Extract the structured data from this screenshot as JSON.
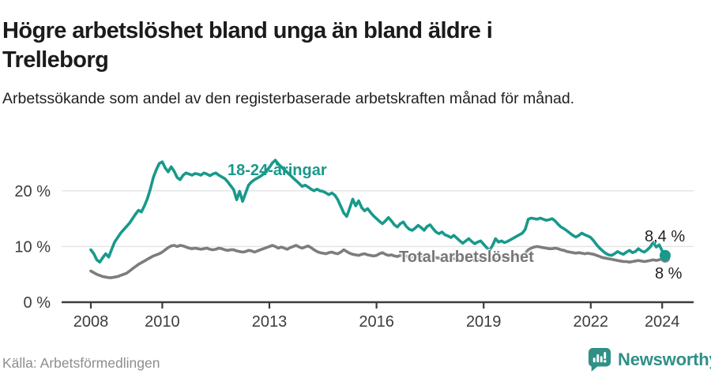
{
  "header": {
    "title": "Högre arbetslöshet bland unga än bland äldre i Trelleborg",
    "subtitle": "Arbetssökande som andel av den registerbaserade arbetskraften månad för månad."
  },
  "footer": {
    "source": "Källa: Arbetsförmedlingen",
    "brand": "Newsworthy"
  },
  "colors": {
    "teal": "#18998b",
    "gray_line": "#7d7d7d",
    "axis": "#3c3c3c",
    "axis_text": "#3c3c3c",
    "gridline": "#e3e3e3",
    "end_label": "#1f1f1f",
    "logo_teal": "#2f9087"
  },
  "chart_data": {
    "type": "line",
    "title": "Högre arbetslöshet bland unga än bland äldre i Trelleborg",
    "subtitle": "Arbetssökande som andel av den registerbaserade arbetskraften månad för månad.",
    "x_unit": "month",
    "x_start": "2008-01",
    "x_end": "2024-02",
    "ylim": [
      0,
      27
    ],
    "grid": true,
    "grid_values": [
      10,
      20
    ],
    "legend_position": "inline-labels",
    "y_ticks": [
      {
        "value": 0,
        "label": "0 %"
      },
      {
        "value": 10,
        "label": "10 %"
      },
      {
        "value": 20,
        "label": "20 %"
      }
    ],
    "x_ticks": [
      {
        "year": 2008,
        "label": "2008"
      },
      {
        "year": 2010,
        "label": "2010"
      },
      {
        "year": 2013,
        "label": "2013"
      },
      {
        "year": 2016,
        "label": "2016"
      },
      {
        "year": 2019,
        "label": "2019"
      },
      {
        "year": 2022,
        "label": "2022"
      },
      {
        "year": 2024,
        "label": "2024"
      }
    ],
    "series": [
      {
        "name": "18-24-åringar",
        "color": "#18998b",
        "end_label": "8,4 %",
        "end_value": 8.4,
        "values": [
          9.4,
          8.7,
          7.6,
          7.2,
          8.0,
          8.7,
          8.1,
          9.5,
          10.8,
          11.6,
          12.4,
          13.0,
          13.6,
          14.2,
          15.0,
          15.8,
          16.5,
          16.2,
          17.3,
          18.6,
          20.3,
          22.4,
          23.8,
          24.9,
          25.2,
          24.1,
          23.4,
          24.3,
          23.5,
          22.4,
          22.0,
          22.8,
          23.2,
          23.0,
          22.8,
          23.1,
          23.0,
          22.8,
          23.2,
          23.0,
          22.7,
          23.0,
          23.2,
          22.8,
          22.5,
          22.2,
          21.6,
          20.9,
          20.2,
          18.4,
          19.9,
          18.1,
          19.6,
          21.0,
          21.6,
          22.0,
          22.3,
          22.6,
          23.0,
          23.6,
          24.2,
          25.0,
          25.5,
          24.8,
          24.3,
          23.8,
          23.3,
          22.8,
          22.3,
          21.8,
          21.3,
          20.8,
          21.0,
          20.7,
          20.3,
          20.0,
          20.3,
          20.0,
          19.9,
          19.6,
          19.3,
          19.6,
          19.2,
          18.4,
          17.2,
          16.0,
          15.4,
          16.9,
          18.5,
          17.3,
          18.2,
          17.0,
          16.4,
          16.8,
          16.1,
          15.5,
          15.0,
          14.5,
          14.1,
          14.6,
          15.2,
          14.6,
          13.9,
          13.5,
          14.1,
          14.4,
          13.6,
          13.1,
          12.9,
          13.3,
          13.8,
          13.4,
          12.9,
          13.6,
          13.9,
          13.2,
          12.6,
          12.3,
          12.6,
          12.1,
          11.9,
          11.6,
          12.0,
          11.5,
          11.0,
          10.6,
          11.0,
          11.4,
          10.9,
          10.5,
          10.8,
          11.0,
          10.4,
          9.8,
          9.3,
          10.2,
          11.4,
          10.8,
          11.0,
          10.7,
          10.9,
          11.2,
          11.5,
          11.8,
          12.1,
          12.4,
          13.1,
          14.9,
          15.1,
          15.0,
          14.9,
          15.1,
          14.9,
          14.7,
          14.8,
          15.0,
          14.6,
          14.0,
          13.5,
          13.2,
          12.8,
          12.4,
          12.0,
          11.7,
          12.0,
          12.4,
          12.1,
          11.9,
          11.6,
          11.0,
          10.3,
          9.7,
          9.2,
          8.8,
          8.5,
          8.4,
          8.7,
          9.1,
          8.8,
          8.6,
          9.0,
          9.3,
          8.9,
          9.1,
          9.6,
          9.2,
          9.0,
          9.4,
          9.9,
          10.8,
          9.9,
          10.3,
          9.2,
          8.4
        ]
      },
      {
        "name": "Total arbetslöshet",
        "color": "#7d7d7d",
        "end_label": "8 %",
        "end_value": 8.0,
        "values": [
          5.6,
          5.3,
          5.0,
          4.8,
          4.6,
          4.5,
          4.4,
          4.4,
          4.5,
          4.6,
          4.8,
          5.0,
          5.2,
          5.6,
          6.0,
          6.4,
          6.8,
          7.1,
          7.4,
          7.7,
          8.0,
          8.3,
          8.5,
          8.7,
          9.0,
          9.4,
          9.8,
          10.1,
          10.2,
          10.0,
          10.2,
          10.1,
          9.9,
          9.7,
          9.6,
          9.7,
          9.6,
          9.5,
          9.6,
          9.7,
          9.5,
          9.4,
          9.5,
          9.7,
          9.6,
          9.4,
          9.3,
          9.4,
          9.4,
          9.2,
          9.1,
          9.0,
          9.1,
          9.3,
          9.2,
          9.0,
          9.2,
          9.4,
          9.6,
          9.8,
          10.0,
          10.2,
          10.0,
          9.7,
          9.9,
          9.7,
          9.5,
          9.8,
          10.0,
          10.2,
          9.9,
          9.7,
          9.9,
          10.1,
          9.8,
          9.4,
          9.1,
          8.9,
          8.8,
          8.7,
          8.9,
          9.0,
          8.8,
          8.7,
          9.0,
          9.4,
          9.1,
          8.8,
          8.6,
          8.5,
          8.4,
          8.6,
          8.7,
          8.5,
          8.4,
          8.3,
          8.4,
          8.7,
          8.9,
          8.6,
          8.4,
          8.5,
          8.3,
          8.2,
          8.4,
          8.5,
          8.3,
          8.1,
          8.0,
          8.2,
          8.4,
          8.2,
          8.0,
          8.1,
          8.3,
          8.2,
          8.0,
          7.9,
          7.8,
          7.9,
          8.0,
          7.9,
          7.8,
          7.7,
          7.6,
          7.7,
          7.8,
          7.7,
          7.6,
          7.5,
          7.6,
          7.7,
          7.7,
          7.6,
          7.5,
          7.6,
          7.7,
          7.8,
          7.9,
          7.8,
          7.9,
          8.0,
          8.1,
          8.2,
          8.3,
          8.4,
          8.8,
          9.4,
          9.7,
          9.9,
          10.0,
          9.9,
          9.8,
          9.7,
          9.6,
          9.6,
          9.7,
          9.6,
          9.4,
          9.3,
          9.1,
          9.0,
          8.9,
          8.8,
          8.9,
          8.8,
          8.7,
          8.8,
          8.7,
          8.6,
          8.4,
          8.2,
          8.0,
          7.9,
          7.8,
          7.7,
          7.6,
          7.5,
          7.4,
          7.3,
          7.3,
          7.2,
          7.3,
          7.4,
          7.5,
          7.4,
          7.3,
          7.4,
          7.5,
          7.6,
          7.5,
          7.6,
          7.8,
          8.0
        ]
      }
    ]
  }
}
